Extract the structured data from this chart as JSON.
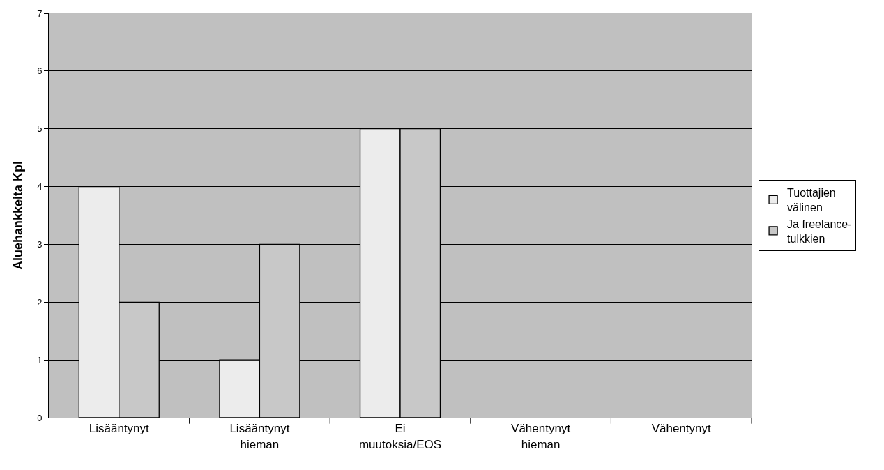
{
  "chart_data": {
    "type": "bar",
    "ylabel": "Aluehankkeita Kpl",
    "categories": [
      "Lisääntynyt",
      "Lisääntynyt hieman",
      "Ei muutoksia/EOS",
      "Vähentynyt hieman",
      "Vähentynyt"
    ],
    "series": [
      {
        "name": "Tuottajien välinen",
        "color": "#ececec",
        "values": [
          4,
          1,
          5,
          0,
          0
        ]
      },
      {
        "name": "Ja freelance-tulkkien",
        "color": "#c8c8c8",
        "values": [
          2,
          3,
          5,
          0,
          0
        ]
      }
    ],
    "ylim": [
      0,
      7
    ],
    "yticks": [
      0,
      1,
      2,
      3,
      4,
      5,
      6,
      7
    ],
    "grid": "y",
    "legend": "right"
  }
}
